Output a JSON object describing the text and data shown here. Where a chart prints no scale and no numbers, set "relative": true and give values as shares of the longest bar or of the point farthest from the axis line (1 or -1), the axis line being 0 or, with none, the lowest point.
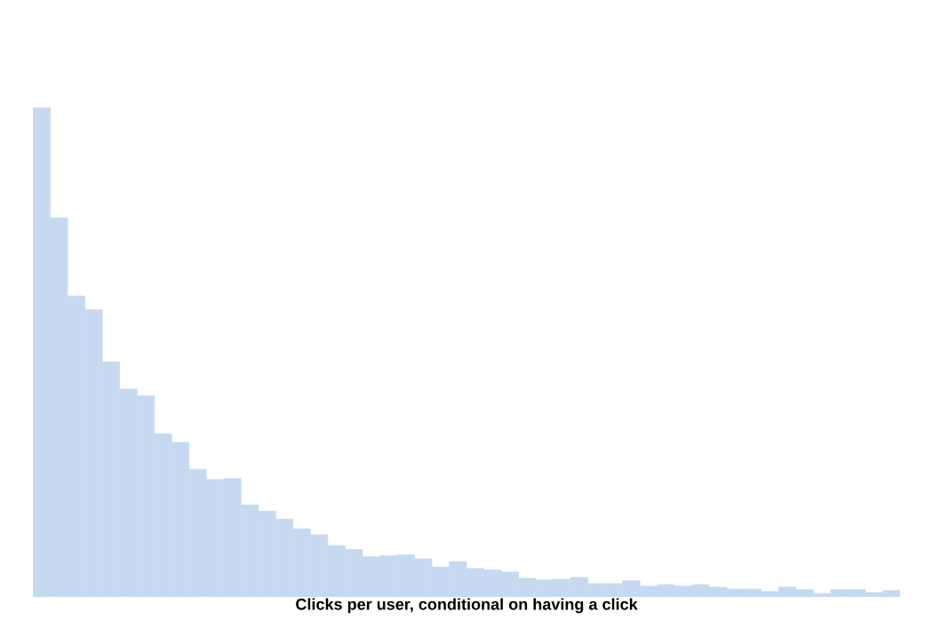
{
  "chart_data": {
    "type": "bar",
    "relative": true,
    "xlabel": "Clicks per user, conditional on having a click",
    "color": "#c6d9f0",
    "grid": false,
    "legend": false,
    "tick_labels": false,
    "categories": [
      null,
      null,
      null,
      null,
      null,
      null,
      null,
      null,
      null,
      null,
      null,
      null,
      null,
      null,
      null,
      null,
      null,
      null,
      null,
      null,
      null,
      null,
      null,
      null,
      null,
      null,
      null,
      null,
      null,
      null,
      null,
      null,
      null,
      null,
      null,
      null,
      null,
      null,
      null,
      null,
      null,
      null,
      null,
      null,
      null,
      null,
      null,
      null,
      null,
      null
    ],
    "values": [
      1.0,
      0.775,
      0.615,
      0.587,
      0.48,
      0.425,
      0.411,
      0.333,
      0.316,
      0.261,
      0.24,
      0.242,
      0.188,
      0.175,
      0.159,
      0.139,
      0.127,
      0.105,
      0.097,
      0.082,
      0.084,
      0.086,
      0.078,
      0.061,
      0.072,
      0.058,
      0.055,
      0.051,
      0.038,
      0.035,
      0.036,
      0.04,
      0.027,
      0.027,
      0.033,
      0.022,
      0.025,
      0.022,
      0.025,
      0.02,
      0.016,
      0.016,
      0.011,
      0.02,
      0.015,
      0.007,
      0.015,
      0.015,
      0.009,
      0.013
    ]
  }
}
